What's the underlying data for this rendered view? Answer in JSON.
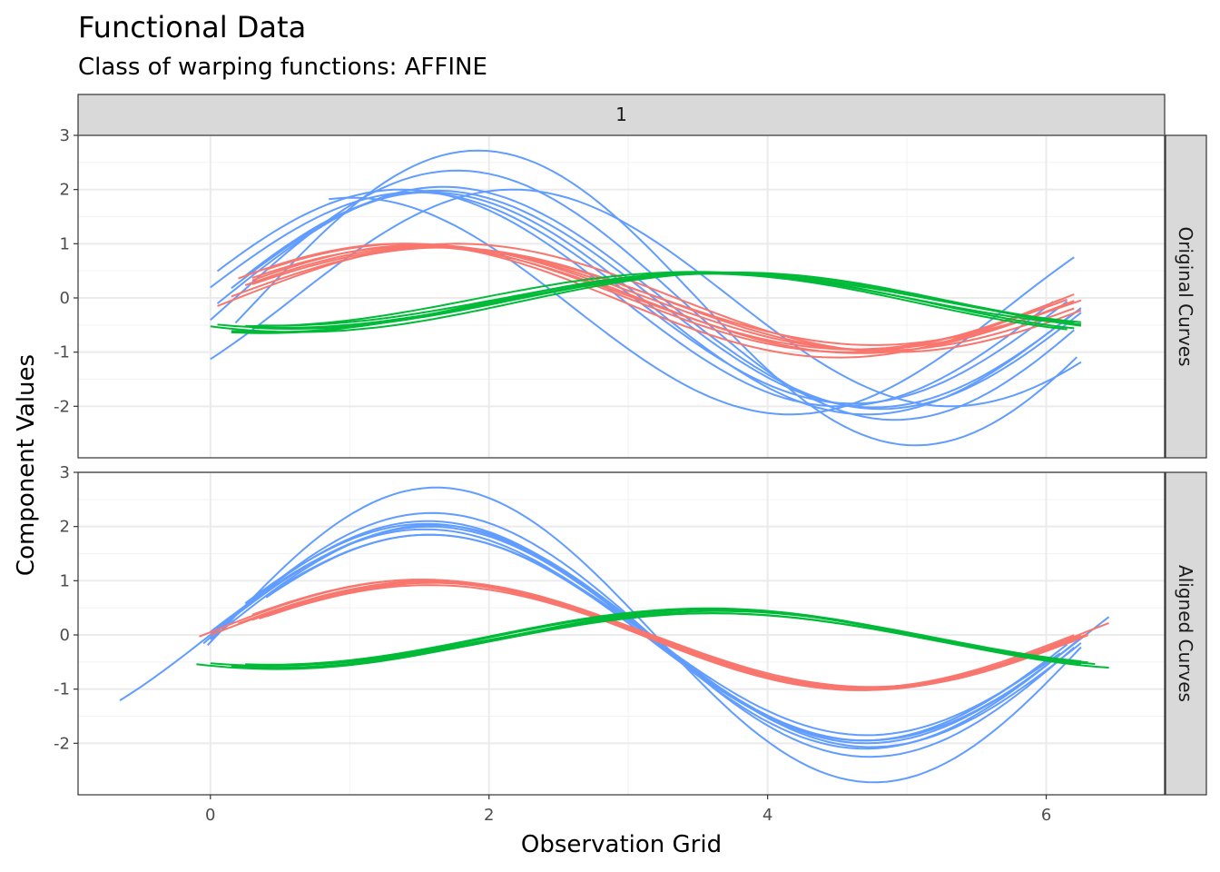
{
  "chart_data": {
    "type": "line",
    "title": "Functional Data",
    "subtitle": "Class of warping functions: AFFINE",
    "xlabel": "Observation Grid",
    "ylabel": "Component Values",
    "column_strip": "1",
    "xlim": [
      -0.95,
      6.85
    ],
    "ylim": [
      -2.95,
      3.0
    ],
    "x_ticks": [
      0,
      2,
      4,
      6
    ],
    "x_tick_labels": [
      "0",
      "2",
      "4",
      "6"
    ],
    "y_ticks": [
      -2,
      -1,
      0,
      1,
      2,
      3
    ],
    "y_tick_labels": [
      "-2",
      "-1",
      "0",
      "1",
      "2",
      "3"
    ],
    "grid": true,
    "colors": {
      "component_1": "#F8766D",
      "component_2": "#00BA38",
      "component_3": "#619CFF"
    },
    "panels": [
      {
        "name": "Original Curves",
        "curves": [
          {
            "component": 3,
            "x0": 0.18,
            "x1": 6.22,
            "amp": 2.72,
            "phase": -0.35,
            "offset": 0.0
          },
          {
            "component": 3,
            "x0": 0.0,
            "x1": 6.2,
            "amp": 2.3,
            "phase": -0.2,
            "offset": 0.05
          },
          {
            "component": 3,
            "x0": 0.05,
            "x1": 6.25,
            "amp": 2.05,
            "phase": -0.1,
            "offset": 0.0
          },
          {
            "component": 3,
            "x0": 0.15,
            "x1": 6.25,
            "amp": 2.0,
            "phase": -0.05,
            "offset": -0.02
          },
          {
            "component": 3,
            "x0": 0.25,
            "x1": 6.2,
            "amp": 2.05,
            "phase": 0.0,
            "offset": -0.1
          },
          {
            "component": 3,
            "x0": 0.0,
            "x1": 6.15,
            "amp": 1.95,
            "phase": 0.1,
            "offset": 0.0
          },
          {
            "component": 3,
            "x0": 0.05,
            "x1": 6.05,
            "amp": 2.0,
            "phase": 0.2,
            "offset": 0.0
          },
          {
            "component": 3,
            "x0": 0.0,
            "x1": 6.25,
            "amp": 2.0,
            "phase": -0.6,
            "offset": 0.0
          },
          {
            "component": 3,
            "x0": 0.85,
            "x1": 6.2,
            "amp": 2.0,
            "phase": 0.55,
            "offset": -0.15
          },
          {
            "component": 1,
            "x0": 0.05,
            "x1": 6.25,
            "amp": 1.0,
            "phase": -0.2,
            "offset": 0.0
          },
          {
            "component": 1,
            "x0": 0.15,
            "x1": 6.2,
            "amp": 0.95,
            "phase": -0.1,
            "offset": -0.02
          },
          {
            "component": 1,
            "x0": 0.25,
            "x1": 6.2,
            "amp": 0.95,
            "phase": 0.0,
            "offset": 0.0
          },
          {
            "component": 1,
            "x0": 0.3,
            "x1": 6.2,
            "amp": 1.0,
            "phase": 0.05,
            "offset": -0.02
          },
          {
            "component": 1,
            "x0": 0.3,
            "x1": 6.15,
            "amp": 0.95,
            "phase": 0.1,
            "offset": 0.0
          },
          {
            "component": 1,
            "x0": 0.4,
            "x1": 6.2,
            "amp": 1.0,
            "phase": 0.15,
            "offset": 0.0
          },
          {
            "component": 1,
            "x0": 0.3,
            "x1": 6.25,
            "amp": 0.9,
            "phase": -0.05,
            "offset": 0.03
          },
          {
            "component": 1,
            "x0": 0.2,
            "x1": 6.1,
            "amp": 1.05,
            "phase": 0.2,
            "offset": -0.05
          },
          {
            "component": 2,
            "x0": 0.0,
            "x1": 6.25,
            "amp": 0.55,
            "phase": -2.2,
            "offset": -0.08
          },
          {
            "component": 2,
            "x0": 0.05,
            "x1": 6.2,
            "amp": 0.5,
            "phase": -2.1,
            "offset": -0.05
          },
          {
            "component": 2,
            "x0": 0.15,
            "x1": 6.2,
            "amp": 0.55,
            "phase": -2.0,
            "offset": -0.08
          },
          {
            "component": 2,
            "x0": 0.25,
            "x1": 6.25,
            "amp": 0.5,
            "phase": -1.9,
            "offset": -0.02
          },
          {
            "component": 2,
            "x0": 0.3,
            "x1": 6.2,
            "amp": 0.52,
            "phase": -2.15,
            "offset": -0.05
          },
          {
            "component": 2,
            "x0": 0.15,
            "x1": 6.15,
            "amp": 0.55,
            "phase": -1.95,
            "offset": -0.1
          },
          {
            "component": 2,
            "x0": 0.35,
            "x1": 6.25,
            "amp": 0.48,
            "phase": -2.05,
            "offset": -0.03
          }
        ]
      },
      {
        "name": "Aligned Curves",
        "curves": [
          {
            "component": 3,
            "x0": -0.02,
            "x1": 6.25,
            "amp": 2.72,
            "phase": -0.05,
            "offset": 0.0
          },
          {
            "component": 3,
            "x0": -0.65,
            "x1": 6.45,
            "amp": 2.0,
            "phase": 0.0,
            "offset": 0.0
          },
          {
            "component": 3,
            "x0": -0.05,
            "x1": 6.2,
            "amp": 2.25,
            "phase": -0.02,
            "offset": 0.0
          },
          {
            "component": 3,
            "x0": 0.25,
            "x1": 6.15,
            "amp": 2.0,
            "phase": 0.02,
            "offset": 0.05
          },
          {
            "component": 3,
            "x0": 0.4,
            "x1": 5.8,
            "amp": 1.9,
            "phase": 0.0,
            "offset": -0.05
          },
          {
            "component": 3,
            "x0": 0.0,
            "x1": 6.25,
            "amp": 2.05,
            "phase": -0.03,
            "offset": -0.02
          },
          {
            "component": 3,
            "x0": 0.0,
            "x1": 6.0,
            "amp": 1.95,
            "phase": 0.03,
            "offset": 0.0
          },
          {
            "component": 3,
            "x0": 0.4,
            "x1": 6.1,
            "amp": 1.85,
            "phase": 0.0,
            "offset": 0.0
          },
          {
            "component": 3,
            "x0": 0.0,
            "x1": 6.25,
            "amp": 2.1,
            "phase": 0.01,
            "offset": 0.0
          },
          {
            "component": 1,
            "x0": -0.08,
            "x1": 6.45,
            "amp": 1.02,
            "phase": 0.05,
            "offset": 0.0
          },
          {
            "component": 1,
            "x0": 0.0,
            "x1": 6.3,
            "amp": 0.98,
            "phase": 0.0,
            "offset": 0.0
          },
          {
            "component": 1,
            "x0": 0.25,
            "x1": 6.25,
            "amp": 1.0,
            "phase": 0.03,
            "offset": -0.02
          },
          {
            "component": 1,
            "x0": 0.35,
            "x1": 6.2,
            "amp": 0.96,
            "phase": -0.03,
            "offset": 0.0
          },
          {
            "component": 1,
            "x0": 0.3,
            "x1": 6.2,
            "amp": 1.0,
            "phase": 0.06,
            "offset": 0.02
          },
          {
            "component": 1,
            "x0": 0.4,
            "x1": 6.2,
            "amp": 0.95,
            "phase": 0.0,
            "offset": -0.03
          },
          {
            "component": 1,
            "x0": 0.3,
            "x1": 6.3,
            "amp": 1.0,
            "phase": -0.02,
            "offset": 0.0
          },
          {
            "component": 1,
            "x0": 0.2,
            "x1": 6.25,
            "amp": 0.97,
            "phase": 0.02,
            "offset": 0.0
          },
          {
            "component": 2,
            "x0": -0.1,
            "x1": 6.45,
            "amp": 0.55,
            "phase": -2.05,
            "offset": -0.08
          },
          {
            "component": 2,
            "x0": 0.0,
            "x1": 6.35,
            "amp": 0.52,
            "phase": -2.0,
            "offset": -0.05
          },
          {
            "component": 2,
            "x0": 0.15,
            "x1": 6.25,
            "amp": 0.5,
            "phase": -2.05,
            "offset": -0.1
          },
          {
            "component": 2,
            "x0": 0.25,
            "x1": 6.3,
            "amp": 0.52,
            "phase": -2.0,
            "offset": -0.03
          },
          {
            "component": 2,
            "x0": 0.3,
            "x1": 6.25,
            "amp": 0.5,
            "phase": -2.08,
            "offset": -0.06
          },
          {
            "component": 2,
            "x0": 0.35,
            "x1": 6.2,
            "amp": 0.48,
            "phase": -2.02,
            "offset": -0.08
          },
          {
            "component": 2,
            "x0": 0.25,
            "x1": 6.15,
            "amp": 0.52,
            "phase": -1.98,
            "offset": -0.04
          }
        ]
      }
    ]
  }
}
